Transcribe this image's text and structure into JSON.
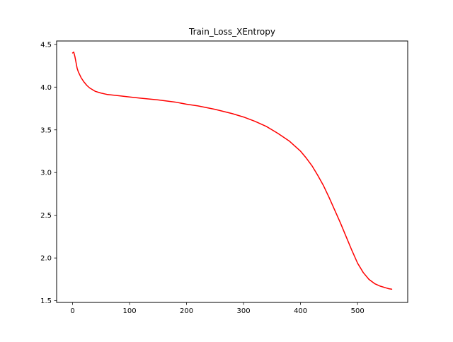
{
  "chart_data": {
    "type": "line",
    "title": "Train_Loss_XEntropy",
    "xlabel": "",
    "ylabel": "",
    "xlim": [
      -28,
      588
    ],
    "ylim": [
      1.48,
      4.54
    ],
    "xticks": [
      0,
      100,
      200,
      300,
      400,
      500
    ],
    "xtick_labels": [
      "0",
      "100",
      "200",
      "300",
      "400",
      "500"
    ],
    "yticks": [
      1.5,
      2.0,
      2.5,
      3.0,
      3.5,
      4.0,
      4.5
    ],
    "ytick_labels": [
      "1.5",
      "2.0",
      "2.5",
      "3.0",
      "3.5",
      "4.0",
      "4.5"
    ],
    "grid": false,
    "legend": "none",
    "series": [
      {
        "color": "#ff0000",
        "x": [
          0,
          2,
          4,
          6,
          8,
          10,
          15,
          20,
          25,
          30,
          40,
          50,
          60,
          80,
          100,
          120,
          150,
          180,
          200,
          220,
          250,
          280,
          300,
          320,
          340,
          360,
          380,
          400,
          410,
          420,
          430,
          440,
          450,
          460,
          470,
          480,
          490,
          500,
          510,
          520,
          530,
          540,
          550,
          555,
          560
        ],
        "y": [
          4.4,
          4.41,
          4.36,
          4.29,
          4.22,
          4.18,
          4.11,
          4.06,
          4.02,
          3.99,
          3.95,
          3.93,
          3.915,
          3.9,
          3.885,
          3.87,
          3.85,
          3.825,
          3.8,
          3.78,
          3.74,
          3.69,
          3.65,
          3.6,
          3.54,
          3.46,
          3.37,
          3.25,
          3.17,
          3.08,
          2.97,
          2.85,
          2.71,
          2.56,
          2.41,
          2.25,
          2.09,
          1.94,
          1.83,
          1.75,
          1.7,
          1.67,
          1.65,
          1.64,
          1.635
        ]
      }
    ]
  }
}
